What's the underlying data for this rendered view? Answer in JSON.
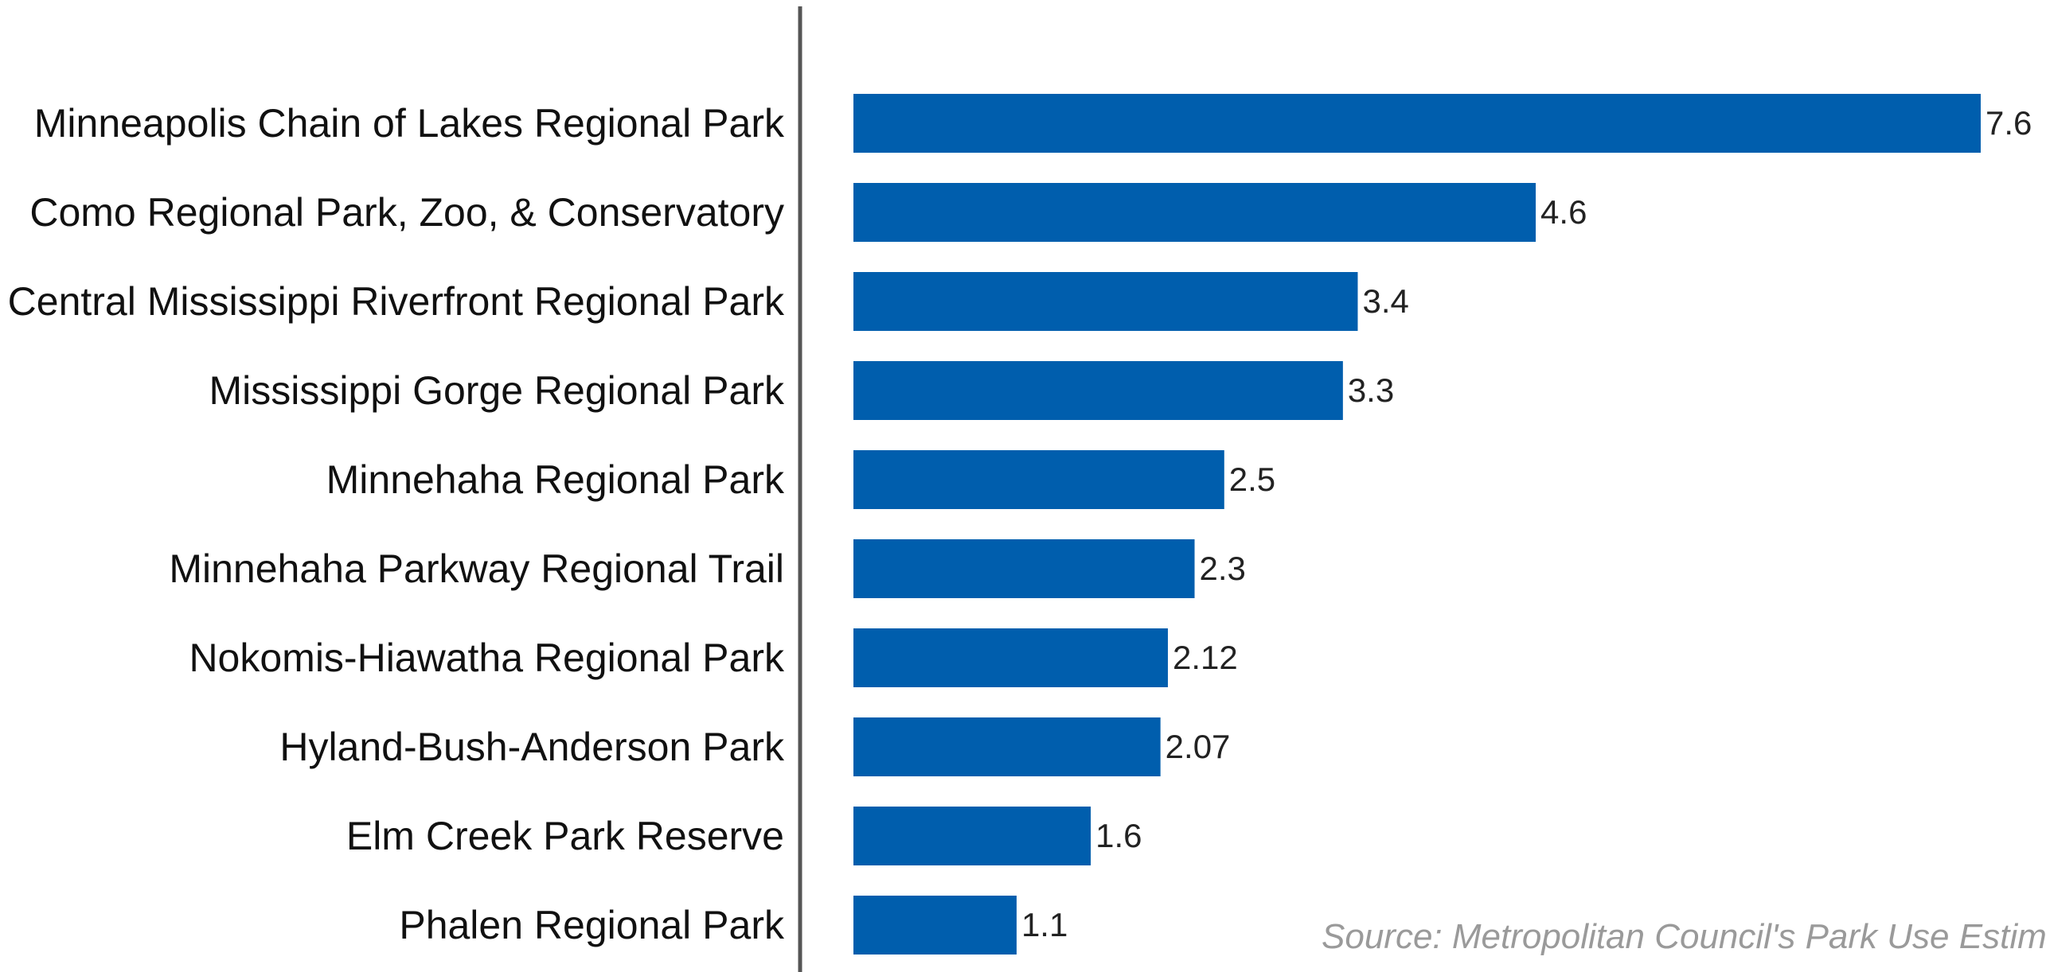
{
  "chart_data": {
    "type": "bar",
    "orientation": "horizontal",
    "categories": [
      "Minneapolis Chain of Lakes Regional Park",
      "Como Regional Park, Zoo, & Conservatory",
      "Central Mississippi Riverfront Regional Park",
      "Mississippi Gorge Regional Park",
      "Minnehaha Regional Park",
      "Minnehaha Parkway Regional Trail",
      "Nokomis-Hiawatha Regional Park",
      "Hyland-Bush-Anderson Park",
      "Elm Creek Park Reserve",
      "Phalen Regional Park"
    ],
    "values": [
      7.6,
      4.6,
      3.4,
      3.3,
      2.5,
      2.3,
      2.12,
      2.07,
      1.6,
      1.1
    ],
    "value_labels": [
      "7.6",
      "4.6",
      "3.4",
      "3.3",
      "2.5",
      "2.3",
      "2.12",
      "2.07",
      "1.6",
      "1.1"
    ],
    "xlim": [
      0,
      7.6
    ],
    "grid": false,
    "legend": "none",
    "bar_color": "#005ead",
    "axis_color": "#555555"
  },
  "source_note": "Source: Metropolitan Council's Park Use Estima"
}
